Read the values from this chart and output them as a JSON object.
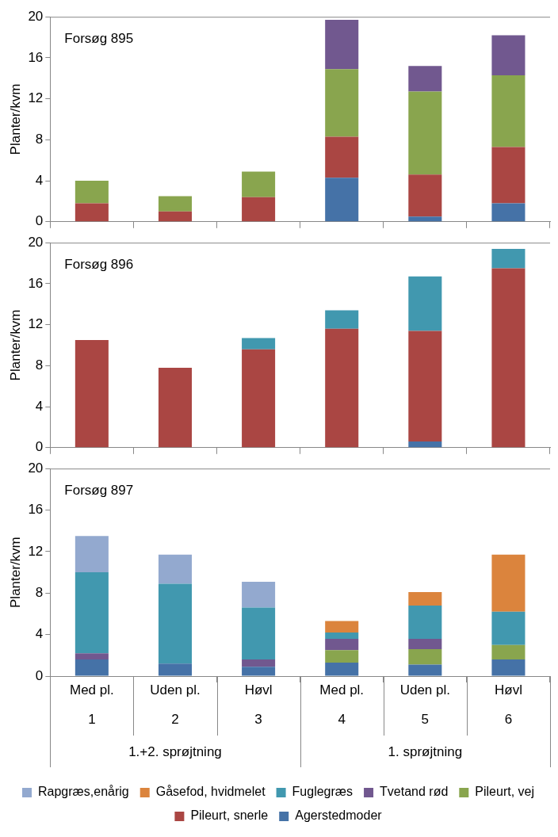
{
  "chart_data": [
    {
      "type": "bar",
      "title": "Forsøg 895",
      "ylabel": "Planter/kvm",
      "stacked": true,
      "categories": [
        null,
        null,
        null,
        null,
        null,
        null
      ],
      "ylim": [
        0,
        20
      ],
      "yticks": [
        0,
        4,
        8,
        12,
        16,
        20
      ],
      "tick_labels": "y",
      "legend": false,
      "series": [
        {
          "color": "#4572a7",
          "values": [
            0,
            0,
            0,
            4.3,
            0.5,
            1.8
          ]
        },
        {
          "color": "#aa4643",
          "values": [
            1.8,
            1.0,
            2.4,
            4.0,
            4.1,
            5.5
          ]
        },
        {
          "color": "#89a54e",
          "values": [
            2.2,
            1.5,
            2.5,
            6.6,
            8.1,
            7.0
          ]
        },
        {
          "color": "#71588f",
          "values": [
            0,
            0,
            0,
            4.8,
            2.5,
            3.9
          ]
        }
      ]
    },
    {
      "type": "bar",
      "title": "Forsøg 896",
      "ylabel": "Planter/kvm",
      "stacked": true,
      "categories": [
        null,
        null,
        null,
        null,
        null,
        null
      ],
      "ylim": [
        0,
        20
      ],
      "yticks": [
        0,
        4,
        8,
        12,
        16,
        20
      ],
      "tick_labels": "y",
      "legend": false,
      "series": [
        {
          "color": "#4572a7",
          "values": [
            0,
            0,
            0,
            0,
            0.6,
            0
          ]
        },
        {
          "color": "#aa4643",
          "values": [
            10.5,
            7.8,
            9.6,
            11.6,
            10.8,
            17.5
          ]
        },
        {
          "color": "#4198af",
          "values": [
            0,
            0,
            1.1,
            1.8,
            5.3,
            1.9
          ]
        }
      ]
    },
    {
      "type": "bar",
      "title": "Forsøg 897",
      "ylabel": "Planter/kvm",
      "stacked": true,
      "categories": [
        "Med pl.",
        "Uden pl.",
        "Høvl",
        "Med pl.",
        "Uden pl.",
        "Høvl"
      ],
      "ylim": [
        0,
        20
      ],
      "yticks": [
        0,
        4,
        8,
        12,
        16,
        20
      ],
      "legend": "bottom",
      "annotations": [
        "1",
        "2",
        "3",
        "4",
        "5",
        "6",
        "1.+2. sprøjtning",
        "1. sprøjtning"
      ],
      "series": [
        {
          "name": "Agerstedmoder",
          "color": "#4572a7",
          "values": [
            1.6,
            1.2,
            0.9,
            1.3,
            1.1,
            1.6
          ]
        },
        {
          "name": "Pileurt, snerle",
          "color": "#aa4643",
          "values": [
            0,
            0,
            0,
            0,
            0,
            0
          ]
        },
        {
          "name": "Pileurt, vej",
          "color": "#89a54e",
          "values": [
            0,
            0,
            0,
            1.2,
            1.5,
            1.4
          ]
        },
        {
          "name": "Tvetand rød",
          "color": "#71588f",
          "values": [
            0.6,
            0,
            0.7,
            1.1,
            1.0,
            0
          ]
        },
        {
          "name": "Fuglegræs",
          "color": "#4198af",
          "values": [
            7.8,
            7.7,
            5.0,
            0.6,
            3.2,
            3.2
          ]
        },
        {
          "name": "Gåsefod, hvidmelet",
          "color": "#db843d",
          "values": [
            0,
            0,
            0,
            1.1,
            1.3,
            5.5
          ]
        },
        {
          "name": "Rapgræs,enårig",
          "color": "#93a9cf",
          "values": [
            3.5,
            2.8,
            2.5,
            0,
            0,
            0
          ]
        }
      ]
    }
  ]
}
